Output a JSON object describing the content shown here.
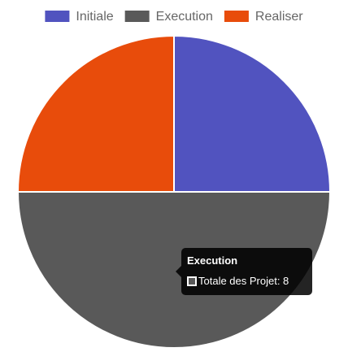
{
  "chart_data": {
    "type": "pie",
    "categories": [
      "Initiale",
      "Execution",
      "Realiser"
    ],
    "series": [
      {
        "name": "Totale des Projet",
        "values": [
          4,
          8,
          4
        ]
      }
    ],
    "colors": [
      "#5153bf",
      "#595959",
      "#e84c0b"
    ],
    "legend_position": "top",
    "grid": false,
    "border_color": "#ffffff"
  },
  "tooltip": {
    "title": "Execution",
    "label": "Totale des Projet: 8",
    "swatch_color": "#595959"
  }
}
